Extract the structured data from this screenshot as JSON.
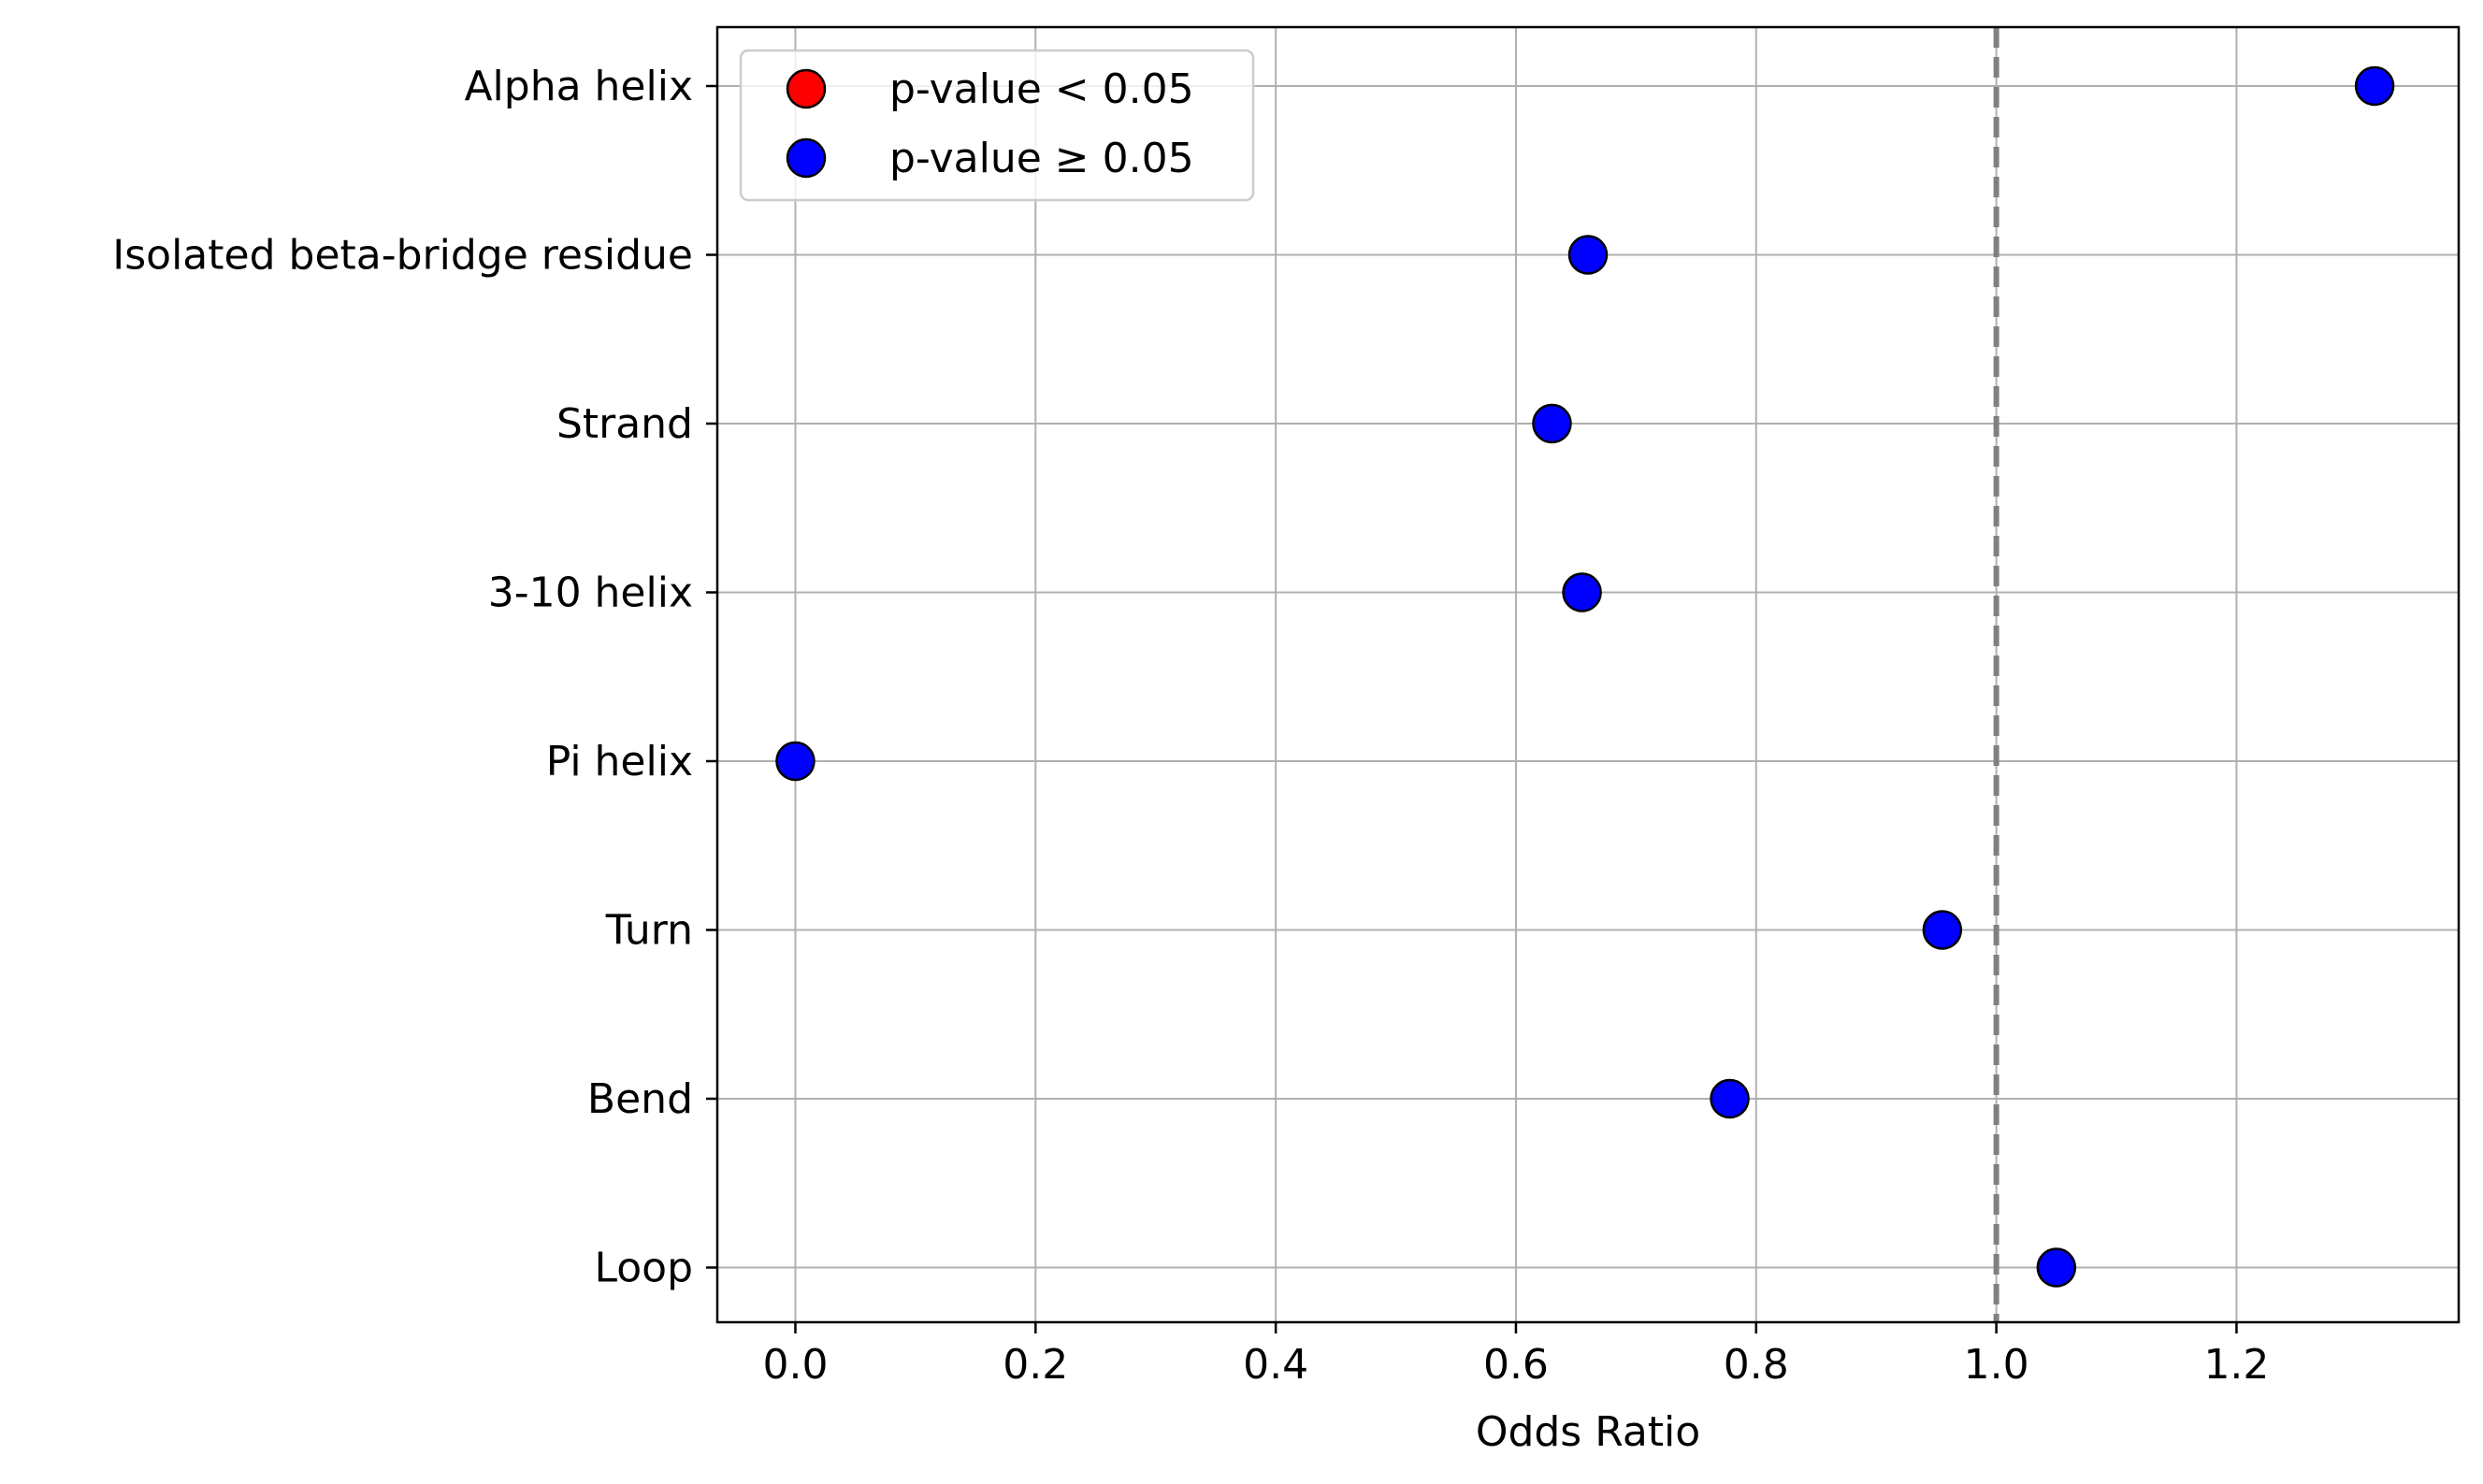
{
  "chart_data": {
    "type": "scatter",
    "title": "",
    "xlabel": "Odds Ratio",
    "ylabel": "",
    "xlim": [
      -0.065,
      1.385
    ],
    "xticks": [
      0.0,
      0.2,
      0.4,
      0.6,
      0.8,
      1.0,
      1.2
    ],
    "xtick_labels": [
      "0.0",
      "0.2",
      "0.4",
      "0.6",
      "0.8",
      "1.0",
      "1.2"
    ],
    "categories": [
      "Alpha helix",
      "Isolated beta-bridge residue",
      "Strand",
      "3-10 helix",
      "Pi helix",
      "Turn",
      "Bend",
      "Loop"
    ],
    "values": [
      1.315,
      0.66,
      0.63,
      0.655,
      0.0,
      0.955,
      0.778,
      1.05
    ],
    "significant": [
      false,
      false,
      false,
      false,
      false,
      false,
      false,
      false
    ],
    "reference_line": {
      "x": 1.0,
      "style": "dashed",
      "color": "#808080"
    },
    "grid": true,
    "legend": {
      "placement": "top-left",
      "entries": [
        {
          "label": "p-value < 0.05",
          "color": "#ff0000"
        },
        {
          "label": "p-value ≥ 0.05",
          "color": "#0000ff"
        }
      ]
    },
    "colors": {
      "significant": "#ff0000",
      "not_significant": "#0000ff",
      "grid": "#b0b0b0",
      "marker_edge": "#000000"
    }
  }
}
